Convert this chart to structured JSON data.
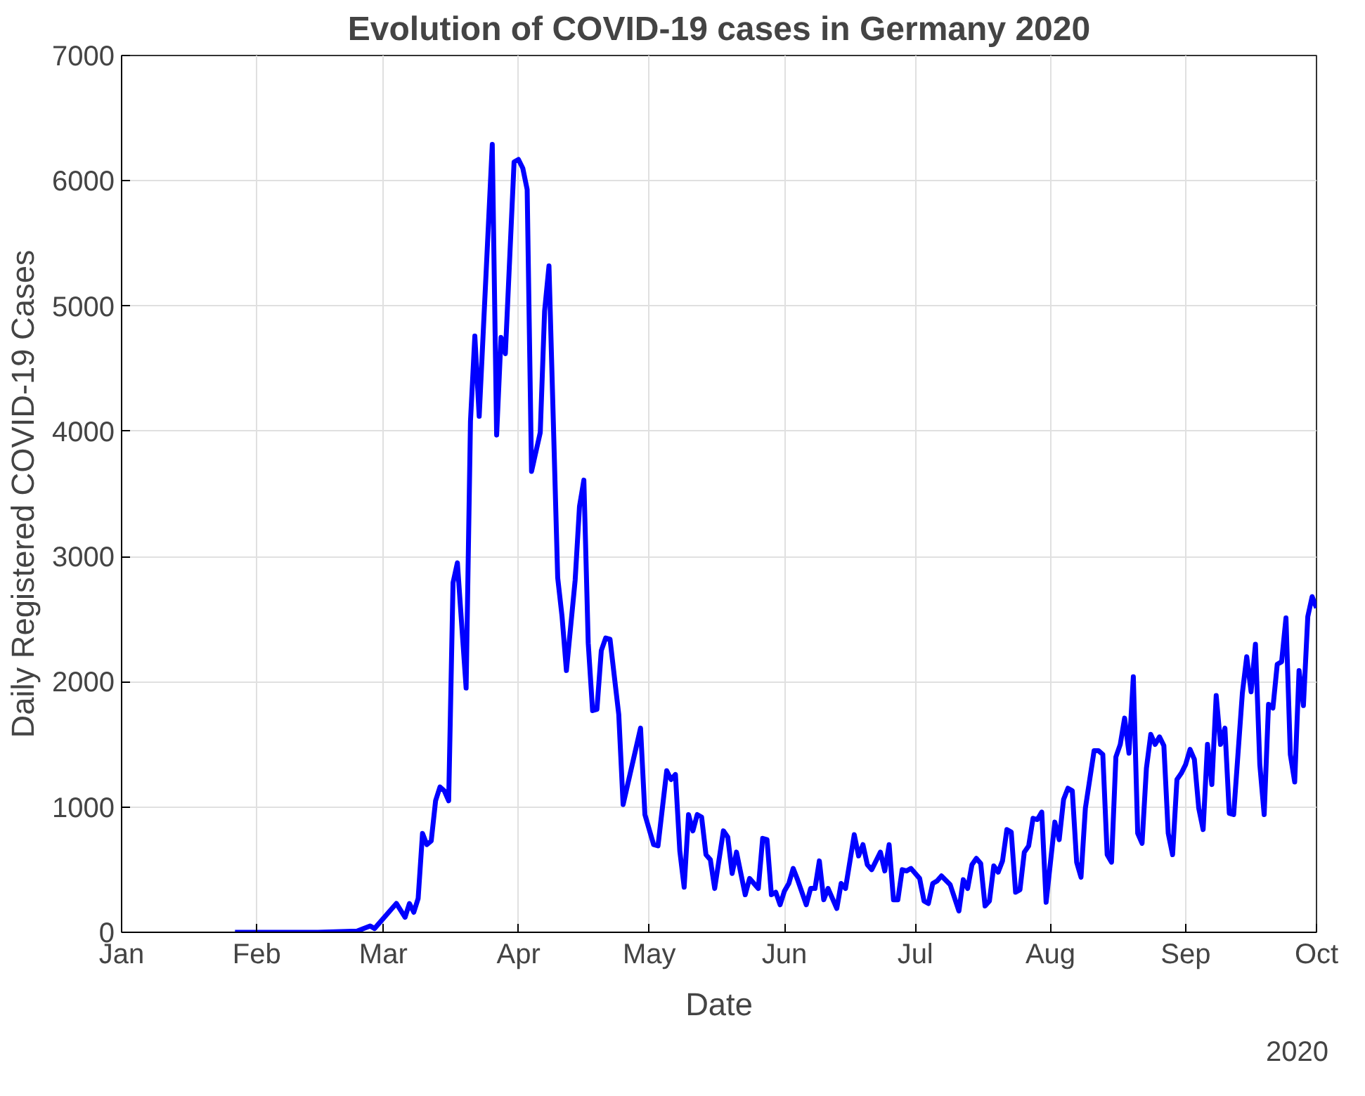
{
  "chart_data": {
    "type": "line",
    "title": "Evolution of COVID-19 cases in Germany 2020",
    "xlabel": "Date",
    "ylabel": "Daily Registered COVID-19 Cases",
    "x": [
      "2020-01-27",
      "2020-02-15",
      "2020-02-24",
      "2020-02-27",
      "2020-02-28",
      "2020-03-04",
      "2020-03-06",
      "2020-03-07",
      "2020-03-08",
      "2020-03-09",
      "2020-03-10",
      "2020-03-11",
      "2020-03-12",
      "2020-03-13",
      "2020-03-14",
      "2020-03-15",
      "2020-03-16",
      "2020-03-17",
      "2020-03-18",
      "2020-03-20",
      "2020-03-21",
      "2020-03-22",
      "2020-03-23",
      "2020-03-26",
      "2020-03-27",
      "2020-03-28",
      "2020-03-29",
      "2020-03-31",
      "2020-04-01",
      "2020-04-02",
      "2020-04-03",
      "2020-04-04",
      "2020-04-06",
      "2020-04-07",
      "2020-04-08",
      "2020-04-10",
      "2020-04-11",
      "2020-04-12",
      "2020-04-14",
      "2020-04-15",
      "2020-04-16",
      "2020-04-17",
      "2020-04-18",
      "2020-04-19",
      "2020-04-20",
      "2020-04-21",
      "2020-04-22",
      "2020-04-24",
      "2020-04-25",
      "2020-04-29",
      "2020-04-30",
      "2020-05-02",
      "2020-05-03",
      "2020-05-05",
      "2020-05-06",
      "2020-05-07",
      "2020-05-08",
      "2020-05-09",
      "2020-05-10",
      "2020-05-11",
      "2020-05-12",
      "2020-05-13",
      "2020-05-14",
      "2020-05-15",
      "2020-05-16",
      "2020-05-18",
      "2020-05-19",
      "2020-05-20",
      "2020-05-21",
      "2020-05-23",
      "2020-05-24",
      "2020-05-26",
      "2020-05-27",
      "2020-05-28",
      "2020-05-29",
      "2020-05-30",
      "2020-05-31",
      "2020-06-01",
      "2020-06-02",
      "2020-06-03",
      "2020-06-04",
      "2020-06-06",
      "2020-06-07",
      "2020-06-08",
      "2020-06-09",
      "2020-06-10",
      "2020-06-11",
      "2020-06-13",
      "2020-06-14",
      "2020-06-15",
      "2020-06-17",
      "2020-06-18",
      "2020-06-19",
      "2020-06-20",
      "2020-06-21",
      "2020-06-23",
      "2020-06-24",
      "2020-06-25",
      "2020-06-26",
      "2020-06-27",
      "2020-06-28",
      "2020-06-29",
      "2020-06-30",
      "2020-07-02",
      "2020-07-03",
      "2020-07-04",
      "2020-07-05",
      "2020-07-06",
      "2020-07-07",
      "2020-07-09",
      "2020-07-11",
      "2020-07-12",
      "2020-07-13",
      "2020-07-14",
      "2020-07-15",
      "2020-07-16",
      "2020-07-17",
      "2020-07-18",
      "2020-07-19",
      "2020-07-20",
      "2020-07-21",
      "2020-07-22",
      "2020-07-23",
      "2020-07-24",
      "2020-07-25",
      "2020-07-26",
      "2020-07-27",
      "2020-07-28",
      "2020-07-29",
      "2020-07-30",
      "2020-07-31",
      "2020-08-02",
      "2020-08-03",
      "2020-08-04",
      "2020-08-05",
      "2020-08-06",
      "2020-08-07",
      "2020-08-08",
      "2020-08-09",
      "2020-08-11",
      "2020-08-12",
      "2020-08-13",
      "2020-08-14",
      "2020-08-15",
      "2020-08-16",
      "2020-08-17",
      "2020-08-18",
      "2020-08-19",
      "2020-08-20",
      "2020-08-21",
      "2020-08-22",
      "2020-08-23",
      "2020-08-24",
      "2020-08-25",
      "2020-08-26",
      "2020-08-27",
      "2020-08-28",
      "2020-08-29",
      "2020-08-30",
      "2020-08-31",
      "2020-09-01",
      "2020-09-02",
      "2020-09-03",
      "2020-09-04",
      "2020-09-05",
      "2020-09-06",
      "2020-09-07",
      "2020-09-08",
      "2020-09-09",
      "2020-09-10",
      "2020-09-11",
      "2020-09-12",
      "2020-09-14",
      "2020-09-15",
      "2020-09-16",
      "2020-09-17",
      "2020-09-18",
      "2020-09-19",
      "2020-09-20",
      "2020-09-21",
      "2020-09-22",
      "2020-09-23",
      "2020-09-24",
      "2020-09-25",
      "2020-09-26",
      "2020-09-27",
      "2020-09-28",
      "2020-09-29",
      "2020-09-30",
      "2020-10-01"
    ],
    "series": [
      {
        "color": "#0000ff",
        "values": [
          0,
          0,
          10,
          50,
          30,
          230,
          120,
          230,
          160,
          270,
          790,
          700,
          730,
          1050,
          1160,
          1130,
          1050,
          2790,
          2950,
          1950,
          4080,
          4760,
          4120,
          6290,
          3970,
          4750,
          4620,
          6150,
          6170,
          6100,
          5930,
          3680,
          3990,
          4960,
          5320,
          2830,
          2520,
          2090,
          2810,
          3400,
          3610,
          2310,
          1770,
          1780,
          2250,
          2350,
          2340,
          1740,
          1020,
          1630,
          940,
          700,
          690,
          1290,
          1220,
          1260,
          650,
          360,
          940,
          810,
          940,
          920,
          620,
          580,
          350,
          810,
          760,
          470,
          640,
          300,
          430,
          350,
          750,
          740,
          300,
          320,
          220,
          330,
          390,
          510,
          420,
          220,
          350,
          350,
          570,
          260,
          350,
          190,
          390,
          350,
          780,
          610,
          700,
          540,
          500,
          640,
          490,
          700,
          260,
          260,
          500,
          490,
          510,
          430,
          250,
          230,
          390,
          410,
          450,
          380,
          170,
          420,
          350,
          540,
          590,
          550,
          210,
          250,
          530,
          480,
          570,
          820,
          800,
          320,
          340,
          640,
          690,
          910,
          900,
          960,
          240,
          880,
          740,
          1060,
          1150,
          1130,
          560,
          440,
          990,
          1450,
          1450,
          1420,
          620,
          560,
          1400,
          1500,
          1710,
          1430,
          2040,
          790,
          710,
          1310,
          1580,
          1500,
          1560,
          1490,
          790,
          620,
          1220,
          1270,
          1340,
          1460,
          1380,
          990,
          820,
          1500,
          1180,
          1890,
          1500,
          1630,
          950,
          940,
          1910,
          2200,
          1920,
          2300,
          1340,
          940,
          1820,
          1790,
          2140,
          2160,
          2510,
          1420,
          1200,
          2090,
          1810,
          2520,
          2680,
          2590
        ]
      }
    ],
    "xlim": [
      "2020-01-01",
      "2020-10-01"
    ],
    "xticks": [
      {
        "value": "2020-01-01",
        "label": "Jan"
      },
      {
        "value": "2020-02-01",
        "label": "Feb"
      },
      {
        "value": "2020-03-01",
        "label": "Mar"
      },
      {
        "value": "2020-04-01",
        "label": "Apr"
      },
      {
        "value": "2020-05-01",
        "label": "May"
      },
      {
        "value": "2020-06-01",
        "label": "Jun"
      },
      {
        "value": "2020-07-01",
        "label": "Jul"
      },
      {
        "value": "2020-08-01",
        "label": "Aug"
      },
      {
        "value": "2020-09-01",
        "label": "Sep"
      },
      {
        "value": "2020-10-01",
        "label": "Oct"
      }
    ],
    "ylim": [
      0,
      7000
    ],
    "yticks": [
      0,
      1000,
      2000,
      3000,
      4000,
      5000,
      6000,
      7000
    ],
    "annotations": [
      "2020"
    ],
    "grid": true,
    "line_style": "solid",
    "marker": "none"
  }
}
